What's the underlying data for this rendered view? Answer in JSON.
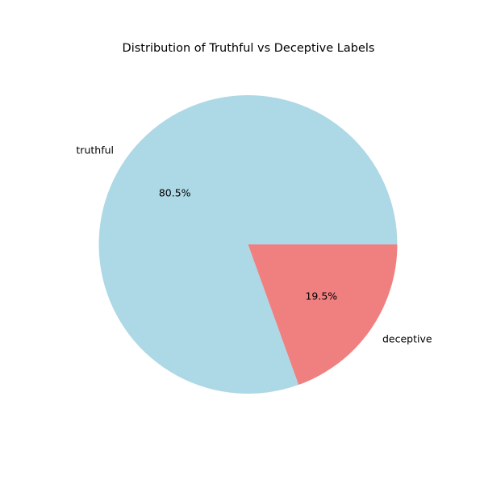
{
  "chart_data": {
    "type": "pie",
    "title": "Distribution of Truthful vs Deceptive Labels",
    "slices": [
      {
        "label": "truthful",
        "value": 80.5,
        "display": "80.5%",
        "color": "#add8e6"
      },
      {
        "label": "deceptive",
        "value": 19.5,
        "display": "19.5%",
        "color": "#f08080"
      }
    ],
    "start_angle_deg": 0,
    "direction": "counterclockwise",
    "legend": "none"
  }
}
